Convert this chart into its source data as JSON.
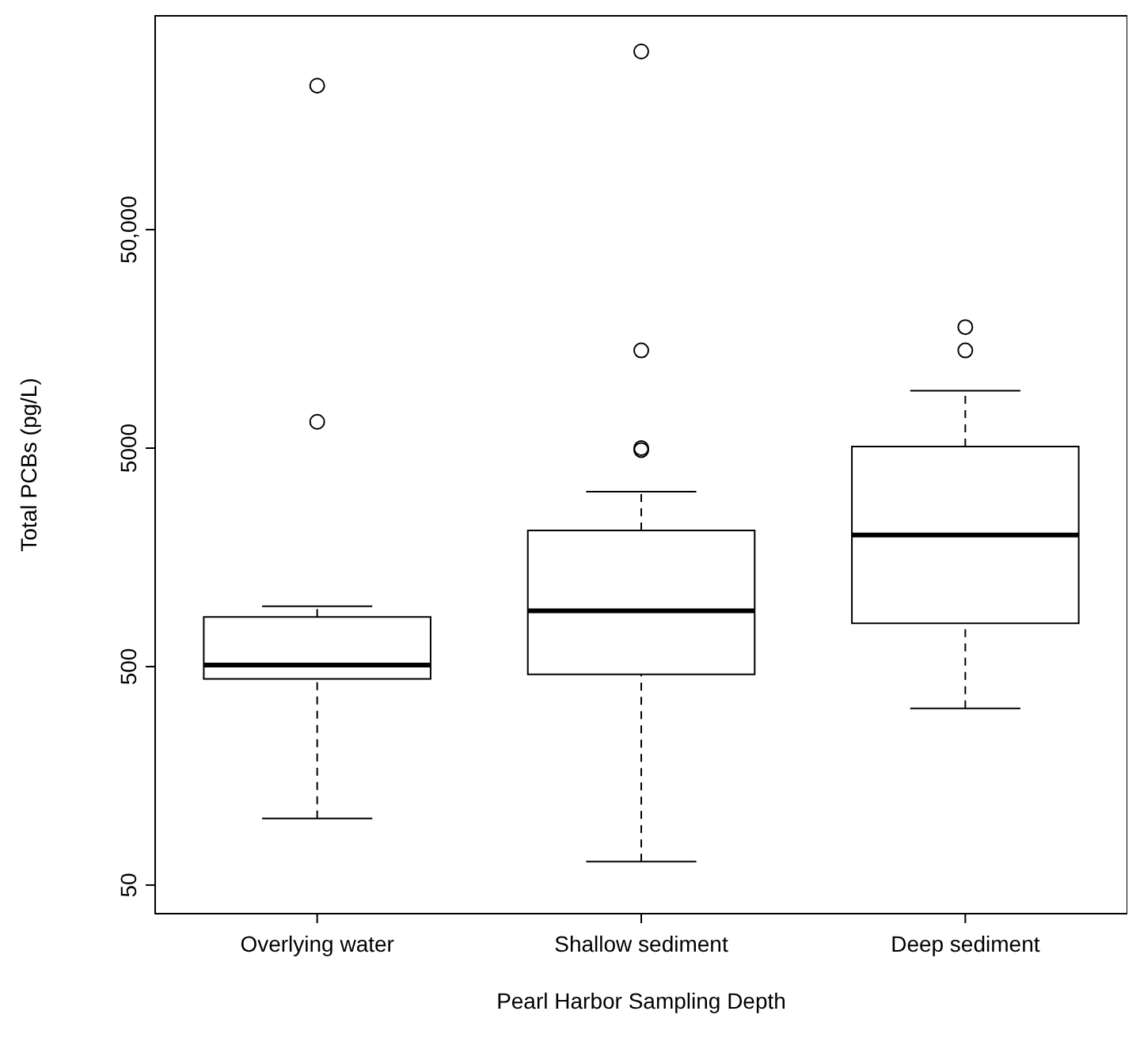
{
  "chart_data": {
    "type": "box",
    "xlabel": "Pearl Harbor Sampling Depth",
    "ylabel": "Total PCBs (pg/L)",
    "categories": [
      "Overlying water",
      "Shallow sediment",
      "Deep sediment"
    ],
    "boxes": [
      {
        "low": 101,
        "q1": 439,
        "median": 508,
        "q3": 843,
        "high": 945,
        "outliers": [
          6600,
          228000
        ]
      },
      {
        "low": 64,
        "q1": 461,
        "median": 900,
        "q3": 2100,
        "high": 3160,
        "outliers": [
          4900,
          5000,
          14000,
          327000
        ]
      },
      {
        "low": 322,
        "q1": 790,
        "median": 2000,
        "q3": 5080,
        "high": 9150,
        "outliers": [
          14000,
          17900
        ]
      }
    ],
    "color": "#000000",
    "log": true,
    "ylim": [
      37,
      476000
    ],
    "yticks": [
      50,
      500,
      5000,
      {
        "value": 50000,
        "label": "50,000"
      }
    ]
  }
}
